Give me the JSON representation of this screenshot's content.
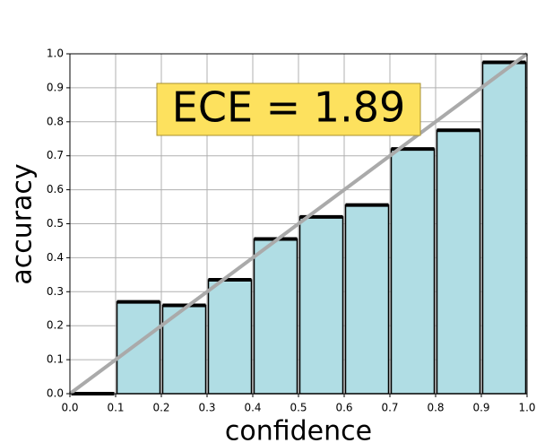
{
  "chart_data": {
    "type": "histogram",
    "bins": [
      0.0,
      0.1,
      0.2,
      0.3,
      0.4,
      0.5,
      0.6,
      0.7,
      0.8,
      0.9,
      1.0
    ],
    "values": [
      0,
      0.27,
      0.26,
      0.335,
      0.455,
      0.52,
      0.555,
      0.72,
      0.775,
      0.975
    ],
    "color": "#b0dde4",
    "xlabel": "confidence",
    "ylabel": "accuracy",
    "annotation": "ECE = 1.89",
    "xlim": [
      0,
      1
    ],
    "ylim": [
      0,
      1
    ],
    "xticks": [
      {
        "value": 0,
        "label": "0.0"
      },
      {
        "value": 0.1,
        "label": "0.1"
      },
      {
        "value": 0.2,
        "label": "0.2"
      },
      {
        "value": 0.3,
        "label": "0.3"
      },
      {
        "value": 0.4,
        "label": "0.4"
      },
      {
        "value": 0.5,
        "label": "0.5"
      },
      {
        "value": 0.6,
        "label": "0.6"
      },
      {
        "value": 0.7,
        "label": "0.7"
      },
      {
        "value": 0.8,
        "label": "0.8"
      },
      {
        "value": 0.9,
        "label": "0.9"
      },
      {
        "value": 1,
        "label": "1.0"
      }
    ],
    "yticks": [
      {
        "value": 0,
        "label": "0.0"
      },
      {
        "value": 0.1,
        "label": "0.1"
      },
      {
        "value": 0.2,
        "label": "0.2"
      },
      {
        "value": 0.3,
        "label": "0.3"
      },
      {
        "value": 0.4,
        "label": "0.4"
      },
      {
        "value": 0.5,
        "label": "0.5"
      },
      {
        "value": 0.6,
        "label": "0.6"
      },
      {
        "value": 0.7,
        "label": "0.7"
      },
      {
        "value": 0.8,
        "label": "0.8"
      },
      {
        "value": 0.9,
        "label": "0.9"
      },
      {
        "value": 1,
        "label": "1.0"
      }
    ],
    "grid": true
  }
}
